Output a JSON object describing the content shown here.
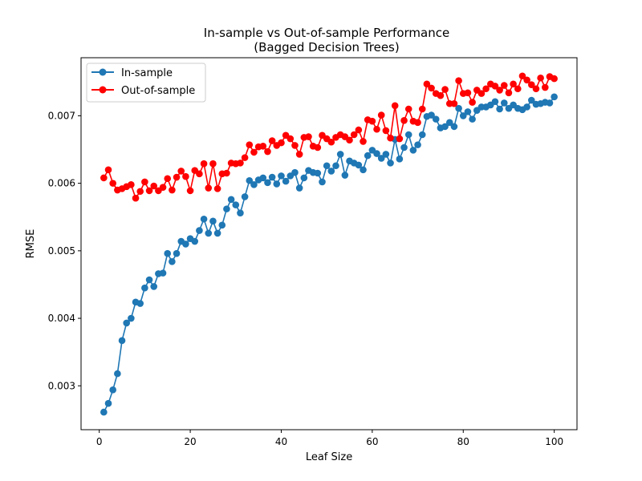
{
  "chart_data": {
    "type": "line",
    "title": "In-sample vs Out-of-sample Performance",
    "subtitle": "(Bagged Decision Trees)",
    "xlabel": "Leaf Size",
    "ylabel": "RMSE",
    "xlim": [
      -4,
      105
    ],
    "ylim": [
      0.00235,
      0.00786
    ],
    "xticks": [
      0,
      20,
      40,
      60,
      80,
      100
    ],
    "xtick_labels": [
      "0",
      "20",
      "40",
      "60",
      "80",
      "100"
    ],
    "yticks": [
      0.003,
      0.004,
      0.005,
      0.006,
      0.007
    ],
    "ytick_labels": [
      "0.003",
      "0.004",
      "0.005",
      "0.006",
      "0.007"
    ],
    "grid": false,
    "legend_position": "top-left",
    "x": [
      1,
      2,
      3,
      4,
      5,
      6,
      7,
      8,
      9,
      10,
      11,
      12,
      13,
      14,
      15,
      16,
      17,
      18,
      19,
      20,
      21,
      22,
      23,
      24,
      25,
      26,
      27,
      28,
      29,
      30,
      31,
      32,
      33,
      34,
      35,
      36,
      37,
      38,
      39,
      40,
      41,
      42,
      43,
      44,
      45,
      46,
      47,
      48,
      49,
      50,
      51,
      52,
      53,
      54,
      55,
      56,
      57,
      58,
      59,
      60,
      61,
      62,
      63,
      64,
      65,
      66,
      67,
      68,
      69,
      70,
      71,
      72,
      73,
      74,
      75,
      76,
      77,
      78,
      79,
      80,
      81,
      82,
      83,
      84,
      85,
      86,
      87,
      88,
      89,
      90,
      91,
      92,
      93,
      94,
      95,
      96,
      97,
      98,
      99,
      100
    ],
    "series": [
      {
        "name": "In-sample",
        "color": "#1f77b4",
        "values": [
          0.00261,
          0.00274,
          0.00294,
          0.00318,
          0.00367,
          0.00393,
          0.004,
          0.00424,
          0.00422,
          0.00445,
          0.00457,
          0.00447,
          0.00466,
          0.00467,
          0.00496,
          0.00484,
          0.00496,
          0.00514,
          0.0051,
          0.00518,
          0.00514,
          0.0053,
          0.00547,
          0.00526,
          0.00544,
          0.00526,
          0.00538,
          0.00562,
          0.00576,
          0.00568,
          0.00556,
          0.0058,
          0.00604,
          0.00598,
          0.00605,
          0.00608,
          0.00601,
          0.00609,
          0.00599,
          0.00611,
          0.00603,
          0.00611,
          0.00616,
          0.00593,
          0.00608,
          0.00619,
          0.00616,
          0.00615,
          0.00602,
          0.00626,
          0.00618,
          0.00626,
          0.00643,
          0.00612,
          0.00633,
          0.0063,
          0.00627,
          0.0062,
          0.00641,
          0.00649,
          0.00644,
          0.00637,
          0.00643,
          0.0063,
          0.00665,
          0.00636,
          0.00653,
          0.00672,
          0.00649,
          0.00657,
          0.00672,
          0.00699,
          0.00701,
          0.00695,
          0.00682,
          0.00684,
          0.0069,
          0.00684,
          0.00711,
          0.007,
          0.00706,
          0.00695,
          0.00708,
          0.00713,
          0.00713,
          0.00716,
          0.00721,
          0.0071,
          0.00719,
          0.00711,
          0.00716,
          0.00711,
          0.00709,
          0.00713,
          0.00723,
          0.00717,
          0.00718,
          0.0072,
          0.00719,
          0.00728
        ]
      },
      {
        "name": "Out-of-sample",
        "color": "#ff0000",
        "values": [
          0.00608,
          0.0062,
          0.006,
          0.0059,
          0.00592,
          0.00595,
          0.00598,
          0.00578,
          0.00588,
          0.00602,
          0.00589,
          0.00596,
          0.00589,
          0.00594,
          0.00607,
          0.0059,
          0.00609,
          0.00618,
          0.0061,
          0.00589,
          0.00619,
          0.00614,
          0.00629,
          0.00593,
          0.00629,
          0.00592,
          0.00614,
          0.00615,
          0.0063,
          0.00629,
          0.0063,
          0.00638,
          0.00657,
          0.00646,
          0.00654,
          0.00655,
          0.00647,
          0.00663,
          0.00656,
          0.0066,
          0.00671,
          0.00666,
          0.00656,
          0.00643,
          0.00668,
          0.00669,
          0.00655,
          0.00653,
          0.00671,
          0.00666,
          0.00661,
          0.00668,
          0.00672,
          0.00669,
          0.00664,
          0.00672,
          0.00679,
          0.00662,
          0.00694,
          0.00692,
          0.0068,
          0.00701,
          0.00678,
          0.00667,
          0.00715,
          0.00666,
          0.00693,
          0.0071,
          0.00692,
          0.0069,
          0.0071,
          0.00747,
          0.00741,
          0.00733,
          0.0073,
          0.00739,
          0.00718,
          0.00718,
          0.00752,
          0.00733,
          0.00734,
          0.0072,
          0.00738,
          0.00733,
          0.0074,
          0.00747,
          0.00744,
          0.00738,
          0.00745,
          0.00734,
          0.00747,
          0.0074,
          0.00759,
          0.00753,
          0.00746,
          0.0074,
          0.00756,
          0.00742,
          0.00758,
          0.00755
        ]
      }
    ]
  }
}
